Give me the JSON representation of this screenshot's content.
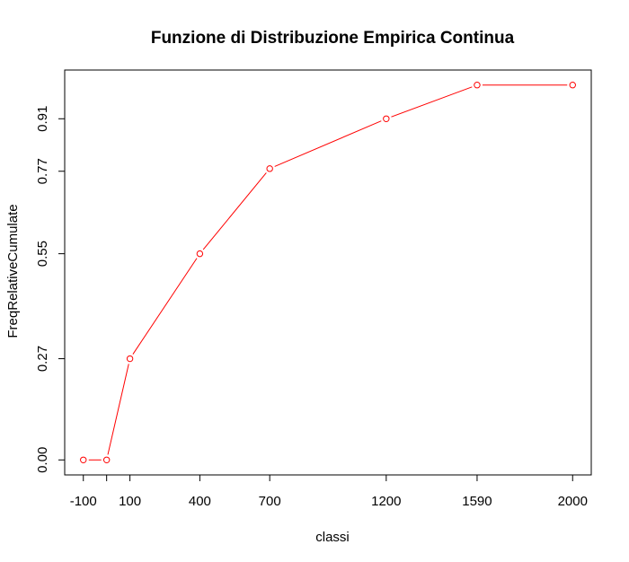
{
  "chart_data": {
    "type": "line",
    "title": "Funzione di Distribuzione Empirica Continua",
    "xlabel": "classi",
    "ylabel": "FreqRelativeCumulate",
    "x": [
      -100,
      0,
      100,
      400,
      700,
      1200,
      1590,
      2000
    ],
    "y": [
      0.0,
      0.0,
      0.27,
      0.55,
      0.777,
      0.91,
      1.0,
      1.0
    ],
    "x_ticks": [
      -100,
      0,
      100,
      400,
      700,
      1200,
      1590,
      2000
    ],
    "x_tick_labels": [
      "-100",
      "",
      "100",
      "400",
      "700",
      "1200",
      "1590",
      "2000"
    ],
    "y_ticks": [
      0.0,
      0.27,
      0.55,
      0.77,
      0.91
    ],
    "y_tick_labels": [
      "0.00",
      "0.27",
      "0.55",
      "0.77",
      "0.91"
    ],
    "xlim": [
      -180,
      2080
    ],
    "ylim": [
      -0.04,
      1.04
    ],
    "grid": false,
    "legend": "none",
    "color": "#ff0000",
    "marker": "open-circle"
  }
}
